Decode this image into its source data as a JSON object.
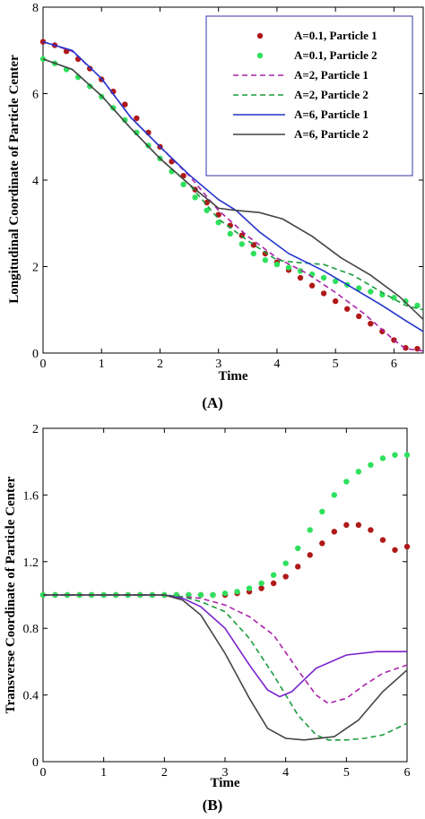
{
  "chart_data": [
    {
      "type": "line",
      "panel_label": "(A)",
      "title": "",
      "xlabel": "Time",
      "ylabel": "Longitudinal Coordinate of Particle Center",
      "xlim": [
        0,
        6.5
      ],
      "ylim": [
        0,
        8
      ],
      "xticks": [
        "0",
        "1",
        "2",
        "3",
        "4",
        "5",
        "6"
      ],
      "yticks": [
        "0",
        "2",
        "4",
        "6",
        "8"
      ],
      "grid": false,
      "legend_position": "top-right",
      "series": [
        {
          "name": "A=0.1, Particle 1",
          "color": "#b01818",
          "style": "dots",
          "x": [
            0,
            0.2,
            0.4,
            0.6,
            0.8,
            1.0,
            1.2,
            1.4,
            1.6,
            1.8,
            2.0,
            2.2,
            2.4,
            2.6,
            2.8,
            3.0,
            3.2,
            3.4,
            3.6,
            3.8,
            4.0,
            4.2,
            4.4,
            4.6,
            4.8,
            5.0,
            5.2,
            5.4,
            5.6,
            5.8,
            6.0,
            6.2,
            6.4
          ],
          "y": [
            7.2,
            7.12,
            6.98,
            6.8,
            6.58,
            6.33,
            6.05,
            5.75,
            5.43,
            5.1,
            4.77,
            4.43,
            4.1,
            3.78,
            3.48,
            3.2,
            2.95,
            2.72,
            2.5,
            2.3,
            2.1,
            1.92,
            1.74,
            1.56,
            1.38,
            1.2,
            1.02,
            0.85,
            0.68,
            0.5,
            0.3,
            0.12,
            0.1
          ]
        },
        {
          "name": "A=0.1, Particle 2",
          "color": "#2ee05c",
          "style": "dots",
          "x": [
            0,
            0.2,
            0.4,
            0.6,
            0.8,
            1.0,
            1.2,
            1.4,
            1.6,
            1.8,
            2.0,
            2.2,
            2.4,
            2.6,
            2.8,
            3.0,
            3.2,
            3.4,
            3.6,
            3.8,
            4.0,
            4.2,
            4.4,
            4.6,
            4.8,
            5.0,
            5.2,
            5.4,
            5.6,
            5.8,
            6.0,
            6.2,
            6.4
          ],
          "y": [
            6.8,
            6.7,
            6.56,
            6.38,
            6.17,
            5.93,
            5.67,
            5.39,
            5.1,
            4.8,
            4.5,
            4.2,
            3.9,
            3.6,
            3.3,
            3.02,
            2.76,
            2.52,
            2.3,
            2.15,
            2.05,
            1.98,
            1.9,
            1.82,
            1.74,
            1.66,
            1.58,
            1.5,
            1.42,
            1.35,
            1.28,
            1.2,
            1.1
          ]
        },
        {
          "name": "A=2, Particle 1",
          "color": "#aa22aa",
          "style": "dashed",
          "x": [
            0,
            0.5,
            1.0,
            1.5,
            2.0,
            2.5,
            3.0,
            3.5,
            4.0,
            4.5,
            5.0,
            5.5,
            6.0,
            6.2,
            6.5
          ],
          "y": [
            7.2,
            6.98,
            6.35,
            5.45,
            4.77,
            4.1,
            3.3,
            2.7,
            2.2,
            1.85,
            1.4,
            0.9,
            0.3,
            0.1,
            0.05
          ]
        },
        {
          "name": "A=2, Particle 2",
          "color": "#1a9c3c",
          "style": "dashed",
          "x": [
            0,
            0.5,
            1.0,
            1.5,
            2.0,
            2.5,
            3.0,
            3.5,
            4.0,
            4.3,
            4.8,
            5.3,
            5.8,
            6.2,
            6.5
          ],
          "y": [
            6.8,
            6.56,
            5.95,
            5.2,
            4.5,
            3.9,
            3.1,
            2.6,
            2.15,
            2.1,
            2.05,
            1.8,
            1.4,
            1.1,
            1.0
          ]
        },
        {
          "name": "A=6, Particle 1",
          "color": "#2233cc",
          "style": "solid",
          "x": [
            0,
            0.5,
            1.0,
            1.5,
            2.0,
            2.5,
            3.0,
            3.3,
            3.7,
            4.2,
            4.8,
            5.3,
            5.8,
            6.2,
            6.5
          ],
          "y": [
            7.2,
            7.0,
            6.35,
            5.45,
            4.77,
            4.12,
            3.55,
            3.3,
            2.8,
            2.3,
            1.9,
            1.5,
            1.1,
            0.75,
            0.5
          ]
        },
        {
          "name": "A=6, Particle 2",
          "color": "#444444",
          "style": "solid",
          "x": [
            0,
            0.5,
            1.0,
            1.5,
            2.0,
            2.5,
            3.0,
            3.3,
            3.7,
            4.1,
            4.6,
            5.1,
            5.6,
            6.1,
            6.5
          ],
          "y": [
            6.8,
            6.56,
            5.95,
            5.2,
            4.5,
            3.9,
            3.35,
            3.3,
            3.25,
            3.1,
            2.7,
            2.2,
            1.8,
            1.3,
            0.78
          ]
        }
      ]
    },
    {
      "type": "line",
      "panel_label": "(B)",
      "title": "",
      "xlabel": "Time",
      "ylabel": "Transverse Coordinate of Particle Center",
      "xlim": [
        0,
        6
      ],
      "ylim": [
        0,
        2
      ],
      "xticks": [
        "0",
        "1",
        "2",
        "3",
        "4",
        "5",
        "6"
      ],
      "yticks": [
        "0",
        "0.4",
        "0.8",
        "1.2",
        "1.6",
        "2"
      ],
      "grid": false,
      "legend_position": "none",
      "series": [
        {
          "name": "A=0.1, Particle 1",
          "color": "#b01818",
          "style": "dots",
          "x": [
            0,
            0.2,
            0.4,
            0.6,
            0.8,
            1.0,
            1.2,
            1.4,
            1.6,
            1.8,
            2.0,
            2.2,
            2.4,
            2.6,
            2.8,
            3.0,
            3.2,
            3.4,
            3.6,
            3.8,
            4.0,
            4.2,
            4.4,
            4.6,
            4.8,
            5.0,
            5.2,
            5.4,
            5.6,
            5.8,
            6.0
          ],
          "y": [
            1.0,
            1.0,
            1.0,
            1.0,
            1.0,
            1.0,
            1.0,
            1.0,
            1.0,
            1.0,
            1.0,
            1.0,
            1.0,
            1.0,
            1.0,
            1.0,
            1.01,
            1.02,
            1.04,
            1.07,
            1.11,
            1.17,
            1.24,
            1.31,
            1.38,
            1.42,
            1.42,
            1.39,
            1.33,
            1.27,
            1.29
          ]
        },
        {
          "name": "A=0.1, Particle 2",
          "color": "#2ee05c",
          "style": "dots",
          "x": [
            0,
            0.2,
            0.4,
            0.6,
            0.8,
            1.0,
            1.2,
            1.4,
            1.6,
            1.8,
            2.0,
            2.2,
            2.4,
            2.6,
            2.8,
            3.0,
            3.2,
            3.4,
            3.6,
            3.8,
            4.0,
            4.2,
            4.4,
            4.6,
            4.8,
            5.0,
            5.2,
            5.4,
            5.6,
            5.8,
            6.0
          ],
          "y": [
            1.0,
            1.0,
            1.0,
            1.0,
            1.0,
            1.0,
            1.0,
            1.0,
            1.0,
            1.0,
            1.0,
            1.0,
            1.0,
            1.0,
            1.0,
            1.01,
            1.02,
            1.04,
            1.07,
            1.12,
            1.19,
            1.28,
            1.39,
            1.5,
            1.6,
            1.68,
            1.74,
            1.78,
            1.82,
            1.84,
            1.84
          ]
        },
        {
          "name": "A=2, Particle 1",
          "color": "#aa22aa",
          "style": "dashed",
          "x": [
            0,
            1.0,
            2.0,
            2.3,
            2.6,
            3.0,
            3.4,
            3.8,
            4.2,
            4.5,
            4.7,
            5.0,
            5.3,
            5.6,
            6.0
          ],
          "y": [
            1.0,
            1.0,
            1.0,
            0.99,
            0.98,
            0.94,
            0.87,
            0.76,
            0.55,
            0.4,
            0.35,
            0.38,
            0.46,
            0.53,
            0.58
          ]
        },
        {
          "name": "A=2, Particle 2",
          "color": "#1a9c3c",
          "style": "dashed",
          "x": [
            0,
            1.0,
            2.0,
            2.3,
            2.6,
            3.0,
            3.4,
            3.8,
            4.2,
            4.5,
            4.7,
            5.0,
            5.3,
            5.6,
            6.0
          ],
          "y": [
            1.0,
            1.0,
            1.0,
            0.99,
            0.96,
            0.9,
            0.74,
            0.52,
            0.28,
            0.16,
            0.13,
            0.13,
            0.14,
            0.16,
            0.23
          ]
        },
        {
          "name": "A=6, Particle 1",
          "color": "#7a22cc",
          "style": "solid",
          "x": [
            0,
            1.0,
            2.0,
            2.3,
            2.6,
            3.0,
            3.4,
            3.7,
            3.9,
            4.1,
            4.5,
            5.0,
            5.5,
            6.0
          ],
          "y": [
            1.0,
            1.0,
            1.0,
            0.98,
            0.93,
            0.8,
            0.58,
            0.43,
            0.39,
            0.42,
            0.56,
            0.64,
            0.66,
            0.66
          ]
        },
        {
          "name": "A=6, Particle 2",
          "color": "#444444",
          "style": "solid",
          "x": [
            0,
            1.0,
            2.0,
            2.3,
            2.6,
            3.0,
            3.4,
            3.7,
            4.0,
            4.3,
            4.8,
            5.2,
            5.6,
            6.0
          ],
          "y": [
            1.0,
            1.0,
            1.0,
            0.97,
            0.88,
            0.65,
            0.38,
            0.2,
            0.14,
            0.13,
            0.15,
            0.25,
            0.42,
            0.55
          ]
        }
      ]
    }
  ]
}
